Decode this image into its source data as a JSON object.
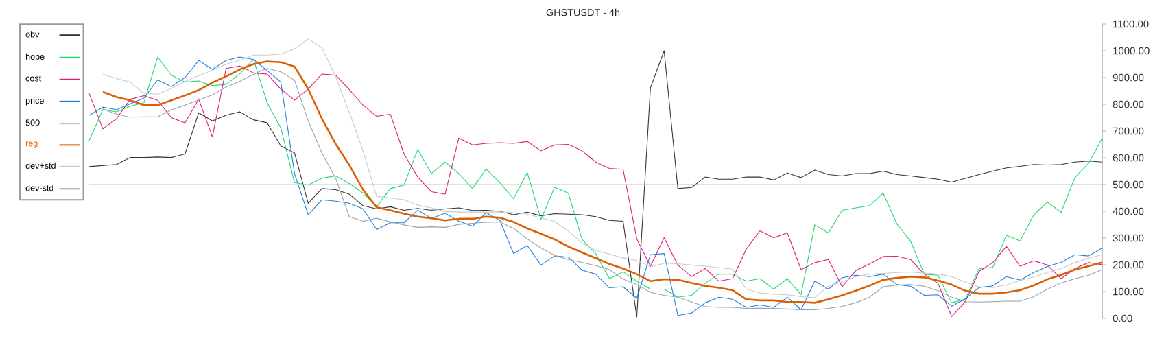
{
  "chart_data": {
    "type": "line",
    "title": "GHSTUSDT - 4h",
    "categories": [
      null,
      null,
      null,
      null,
      null,
      null,
      null,
      null,
      null,
      null,
      null,
      null,
      null,
      null,
      null,
      null,
      null,
      null,
      null,
      null,
      null,
      null,
      null,
      null,
      null,
      null,
      null,
      null,
      null,
      null,
      null,
      null,
      null,
      null,
      null,
      null,
      null,
      null,
      null,
      null,
      null,
      null,
      null,
      null,
      null,
      null,
      null,
      null,
      null,
      null,
      null,
      null,
      null,
      null,
      null,
      null,
      null,
      null,
      null,
      null,
      null,
      null,
      null,
      null,
      null,
      null,
      null,
      null,
      null,
      null,
      null,
      null,
      null,
      null,
      null
    ],
    "series": [
      {
        "name": "obv",
        "color": "#333333",
        "values": [
          567,
          571,
          575,
          601,
          601,
          603,
          601,
          614,
          768,
          738,
          759,
          772,
          742,
          731,
          644,
          618,
          430,
          485,
          481,
          464,
          421,
          409,
          417,
          404,
          411,
          404,
          409,
          413,
          403,
          404,
          400,
          387,
          397,
          383,
          391,
          389,
          387,
          380,
          366,
          363,
          5,
          862,
          1000,
          485,
          489,
          528,
          520,
          520,
          528,
          528,
          517,
          543,
          526,
          554,
          537,
          532,
          541,
          541,
          550,
          537,
          532,
          526,
          520,
          509,
          523,
          537,
          550,
          562,
          568,
          575,
          573,
          575,
          584,
          588,
          584
        ]
      },
      {
        "name": "hope",
        "color": "#1fd96c",
        "values": [
          665,
          780,
          772,
          793,
          806,
          977,
          909,
          883,
          887,
          870,
          874,
          913,
          968,
          806,
          711,
          507,
          498,
          524,
          532,
          504,
          468,
          417,
          485,
          498,
          631,
          541,
          584,
          541,
          485,
          558,
          507,
          447,
          545,
          370,
          490,
          468,
          295,
          242,
          148,
          174,
          139,
          109,
          109,
          79,
          86,
          131,
          165,
          165,
          139,
          148,
          109,
          148,
          88,
          349,
          319,
          404,
          413,
          421,
          468,
          353,
          289,
          165,
          161,
          58,
          71,
          186,
          190,
          310,
          289,
          387,
          434,
          396,
          526,
          579,
          674
        ]
      },
      {
        "name": "cost",
        "color": "#e3187a",
        "values": [
          840,
          708,
          746,
          819,
          832,
          815,
          750,
          731,
          819,
          678,
          934,
          943,
          917,
          913,
          857,
          815,
          857,
          913,
          909,
          855,
          797,
          755,
          763,
          614,
          528,
          473,
          464,
          674,
          648,
          654,
          656,
          654,
          661,
          626,
          648,
          650,
          626,
          584,
          560,
          557,
          297,
          195,
          301,
          199,
          156,
          186,
          139,
          148,
          259,
          327,
          301,
          319,
          182,
          208,
          220,
          118,
          178,
          203,
          231,
          232,
          220,
          165,
          131,
          7,
          62,
          175,
          208,
          269,
          195,
          215,
          199,
          148,
          186,
          208,
          201
        ]
      },
      {
        "name": "price",
        "color": "#1f7de0",
        "values": [
          759,
          789,
          780,
          802,
          823,
          891,
          866,
          900,
          964,
          930,
          964,
          977,
          968,
          926,
          883,
          541,
          387,
          443,
          438,
          430,
          409,
          332,
          357,
          357,
          404,
          374,
          393,
          363,
          344,
          395,
          366,
          242,
          272,
          199,
          233,
          229,
          180,
          165,
          114,
          118,
          75,
          238,
          242,
          11,
          20,
          58,
          79,
          71,
          41,
          50,
          41,
          79,
          32,
          139,
          109,
          152,
          161,
          156,
          165,
          126,
          120,
          86,
          88,
          45,
          73,
          115,
          121,
          156,
          143,
          171,
          194,
          209,
          238,
          233,
          263
        ]
      },
      {
        "name": "500",
        "color": "#c4c4c4",
        "values": [
          500,
          500,
          500,
          500,
          500,
          500,
          500,
          500,
          500,
          500,
          500,
          500,
          500,
          500,
          500,
          500,
          500,
          500,
          500,
          500,
          500,
          500,
          500,
          500,
          500,
          500,
          500,
          500,
          500,
          500,
          500,
          500,
          500,
          500,
          500,
          500,
          500,
          500,
          500,
          500,
          500,
          500,
          500,
          500,
          500,
          500,
          500,
          500,
          500,
          500,
          500,
          500,
          500,
          500,
          500,
          500,
          500,
          500,
          500,
          500,
          500,
          500,
          500,
          500,
          500,
          500,
          500,
          500,
          500,
          500,
          500,
          500,
          500,
          500,
          500
        ]
      },
      {
        "name": "reg",
        "color": "#d95f02",
        "values": [
          null,
          846,
          827,
          815,
          797,
          797,
          815,
          833,
          853,
          881,
          904,
          930,
          950,
          960,
          957,
          941,
          857,
          746,
          652,
          573,
          481,
          415,
          404,
          391,
          380,
          374,
          366,
          372,
          372,
          380,
          376,
          360,
          336,
          316,
          295,
          268,
          246,
          225,
          203,
          186,
          165,
          139,
          146,
          144,
          132,
          121,
          114,
          105,
          71,
          67,
          67,
          61,
          61,
          58,
          71,
          86,
          103,
          122,
          144,
          151,
          156,
          153,
          141,
          126,
          103,
          92,
          92,
          97,
          105,
          123,
          146,
          162,
          182,
          195,
          209
        ]
      },
      {
        "name": "dev+std",
        "color": "#c6cbcf",
        "values": [
          null,
          913,
          896,
          883,
          840,
          838,
          859,
          885,
          907,
          927,
          950,
          964,
          984,
          984,
          987,
          1007,
          1044,
          1011,
          904,
          770,
          626,
          456,
          450,
          443,
          423,
          413,
          399,
          397,
          397,
          397,
          397,
          395,
          389,
          376,
          362,
          326,
          281,
          254,
          240,
          226,
          216,
          192,
          206,
          204,
          199,
          195,
          189,
          184,
          109,
          95,
          90,
          88,
          81,
          77,
          121,
          135,
          156,
          165,
          168,
          171,
          173,
          169,
          165,
          156,
          135,
          118,
          115,
          125,
          141,
          155,
          171,
          186,
          208,
          225,
          238
        ]
      },
      {
        "name": "dev-std",
        "color": "#97a2a8",
        "values": [
          null,
          783,
          763,
          752,
          753,
          753,
          779,
          797,
          816,
          835,
          864,
          886,
          912,
          934,
          921,
          890,
          738,
          618,
          524,
          380,
          363,
          374,
          361,
          349,
          340,
          342,
          340,
          351,
          355,
          359,
          360,
          336,
          297,
          263,
          235,
          220,
          209,
          197,
          182,
          147,
          126,
          97,
          86,
          79,
          61,
          44,
          41,
          41,
          37,
          38,
          37,
          35,
          32,
          32,
          37,
          45,
          58,
          79,
          118,
          124,
          126,
          120,
          103,
          79,
          62,
          61,
          62,
          64,
          64,
          81,
          109,
          132,
          148,
          161,
          182
        ]
      }
    ],
    "ylim": [
      0,
      1100
    ],
    "yticks": [
      {
        "value": 0,
        "label": "0.00"
      },
      {
        "value": 100,
        "label": "100.00"
      },
      {
        "value": 200,
        "label": "200.00"
      },
      {
        "value": 300,
        "label": "300.00"
      },
      {
        "value": 400,
        "label": "400.00"
      },
      {
        "value": 500,
        "label": "500.00"
      },
      {
        "value": 600,
        "label": "600.00"
      },
      {
        "value": 700,
        "label": "700.00"
      },
      {
        "value": 800,
        "label": "800.00"
      },
      {
        "value": 900,
        "label": "900.00"
      },
      {
        "value": 1000,
        "label": "1000.00"
      },
      {
        "value": 1100,
        "label": "1100.00"
      }
    ],
    "legend": "top left",
    "tick_labels": "y"
  }
}
